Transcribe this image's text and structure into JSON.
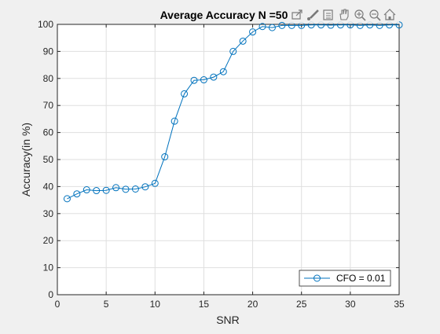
{
  "chart_data": {
    "type": "line",
    "title": "Average Accuracy N =50",
    "xlabel": "SNR",
    "ylabel": "Accuracy(in %)",
    "xlim": [
      0,
      35
    ],
    "ylim": [
      0,
      100
    ],
    "xticks": [
      0,
      5,
      10,
      15,
      20,
      25,
      30,
      35
    ],
    "yticks": [
      0,
      10,
      20,
      30,
      40,
      50,
      60,
      70,
      80,
      90,
      100
    ],
    "grid": true,
    "legend_position": "bottom-right",
    "series": [
      {
        "name": "CFO = 0.01",
        "color": "#0072BD",
        "marker": "circle",
        "x": [
          1,
          2,
          3,
          4,
          5,
          6,
          7,
          8,
          9,
          10,
          11,
          12,
          13,
          14,
          15,
          16,
          17,
          18,
          19,
          20,
          21,
          22,
          23,
          24,
          25,
          26,
          27,
          28,
          29,
          30,
          31,
          32,
          33,
          34,
          35
        ],
        "y": [
          35.5,
          37.3,
          38.8,
          38.5,
          38.6,
          39.6,
          39.0,
          39.1,
          39.9,
          41.2,
          51.0,
          64.2,
          74.3,
          79.3,
          79.5,
          80.5,
          82.5,
          90.0,
          93.8,
          97.2,
          99.2,
          98.8,
          99.6,
          99.6,
          99.6,
          99.8,
          99.8,
          99.7,
          99.8,
          99.8,
          99.6,
          99.8,
          99.6,
          99.8,
          99.8
        ]
      }
    ]
  },
  "toolbar": {
    "icons": [
      "export-icon",
      "brush-icon",
      "data-tips-icon",
      "pan-icon",
      "zoom-in-icon",
      "zoom-out-icon",
      "home-icon"
    ]
  }
}
